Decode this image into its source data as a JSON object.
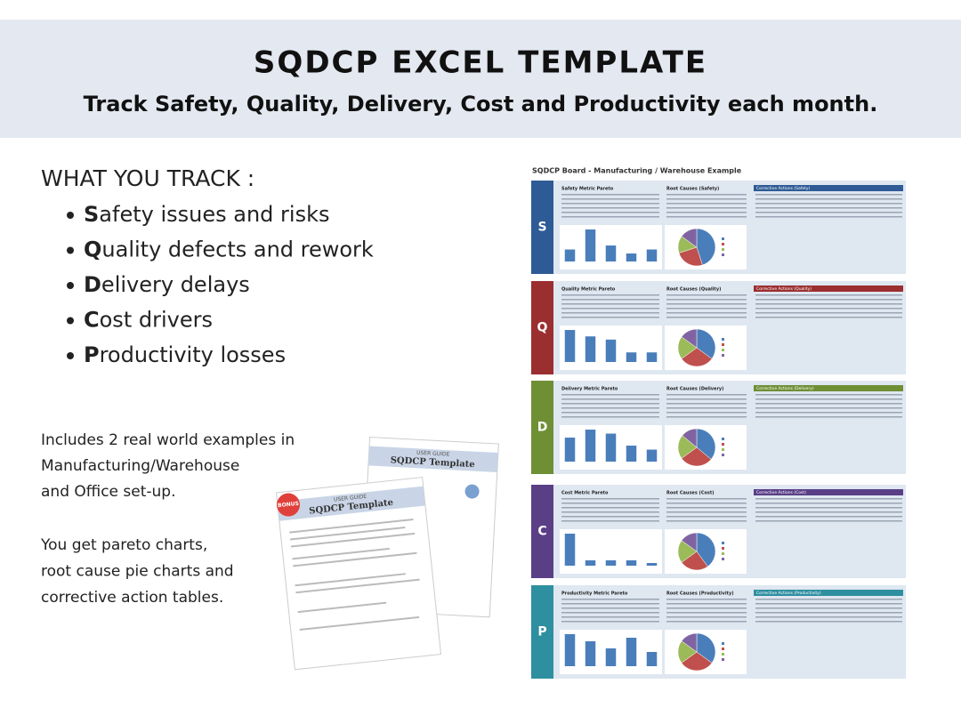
{
  "header": {
    "title": "SQDCP EXCEL TEMPLATE",
    "subtitle": "Track Safety, Quality, Delivery, Cost and Productivity each month."
  },
  "track": {
    "heading": "WHAT YOU TRACK :",
    "items": [
      {
        "letter": "S",
        "rest": "afety issues and risks"
      },
      {
        "letter": "Q",
        "rest": "uality defects and rework"
      },
      {
        "letter": "D",
        "rest": "elivery delays"
      },
      {
        "letter": "C",
        "rest": "ost drivers"
      },
      {
        "letter": "P",
        "rest": "roductivity losses"
      }
    ]
  },
  "includes": {
    "lines": [
      "Includes 2 real world examples in",
      "Manufacturing/Warehouse",
      "and Office set-up."
    ],
    "more": [
      "You get pareto charts,",
      "root cause pie charts and",
      "corrective action tables."
    ]
  },
  "guide": {
    "badge": "BONUS",
    "label": "USER GUIDE",
    "title": "SQDCP Template"
  },
  "board": {
    "title": "SQDCP Board - Manufacturing / Warehouse Example",
    "bar_color": "#4a7ebb",
    "pie_colors": [
      "#4a7ebb",
      "#c0504d",
      "#9bbb59",
      "#8064a2"
    ],
    "panels": [
      {
        "letter": "S",
        "color": "#2e5b95",
        "pareto_title": "Safety Metric Pareto",
        "root_title": "Root Causes (Safety)",
        "actions_title": "Corrective Actions (Safety)",
        "pareto": [
          3,
          8,
          4,
          2,
          3
        ],
        "pie": [
          45,
          25,
          15,
          15
        ]
      },
      {
        "letter": "Q",
        "color": "#9b2f2f",
        "pareto_title": "Quality Metric Pareto",
        "root_title": "Root Causes (Quality)",
        "actions_title": "Corrective Actions (Quality)",
        "pareto": [
          10,
          8,
          7,
          3,
          3
        ],
        "pie": [
          35,
          30,
          20,
          15
        ]
      },
      {
        "letter": "D",
        "color": "#6f8f35",
        "pareto_title": "Delivery Metric Pareto",
        "root_title": "Root Causes (Delivery)",
        "actions_title": "Corrective Actions (Delivery)",
        "pareto": [
          6,
          8,
          7,
          4,
          3
        ],
        "pie": [
          36,
          29,
          21,
          14
        ]
      },
      {
        "letter": "C",
        "color": "#5a3f87",
        "pareto_title": "Cost Metric Pareto",
        "root_title": "Root Causes (Cost)",
        "actions_title": "Corrective Actions (Cost)",
        "pareto": [
          12,
          2,
          2,
          2,
          1
        ],
        "pie": [
          40,
          25,
          20,
          15
        ]
      },
      {
        "letter": "P",
        "color": "#2e8fa0",
        "pareto_title": "Productivity Metric Pareto",
        "root_title": "Root Causes (Productivity)",
        "actions_title": "Corrective Actions (Productivity)",
        "pareto": [
          9,
          7,
          5,
          8,
          4
        ],
        "pie": [
          35,
          30,
          20,
          15
        ]
      }
    ]
  }
}
